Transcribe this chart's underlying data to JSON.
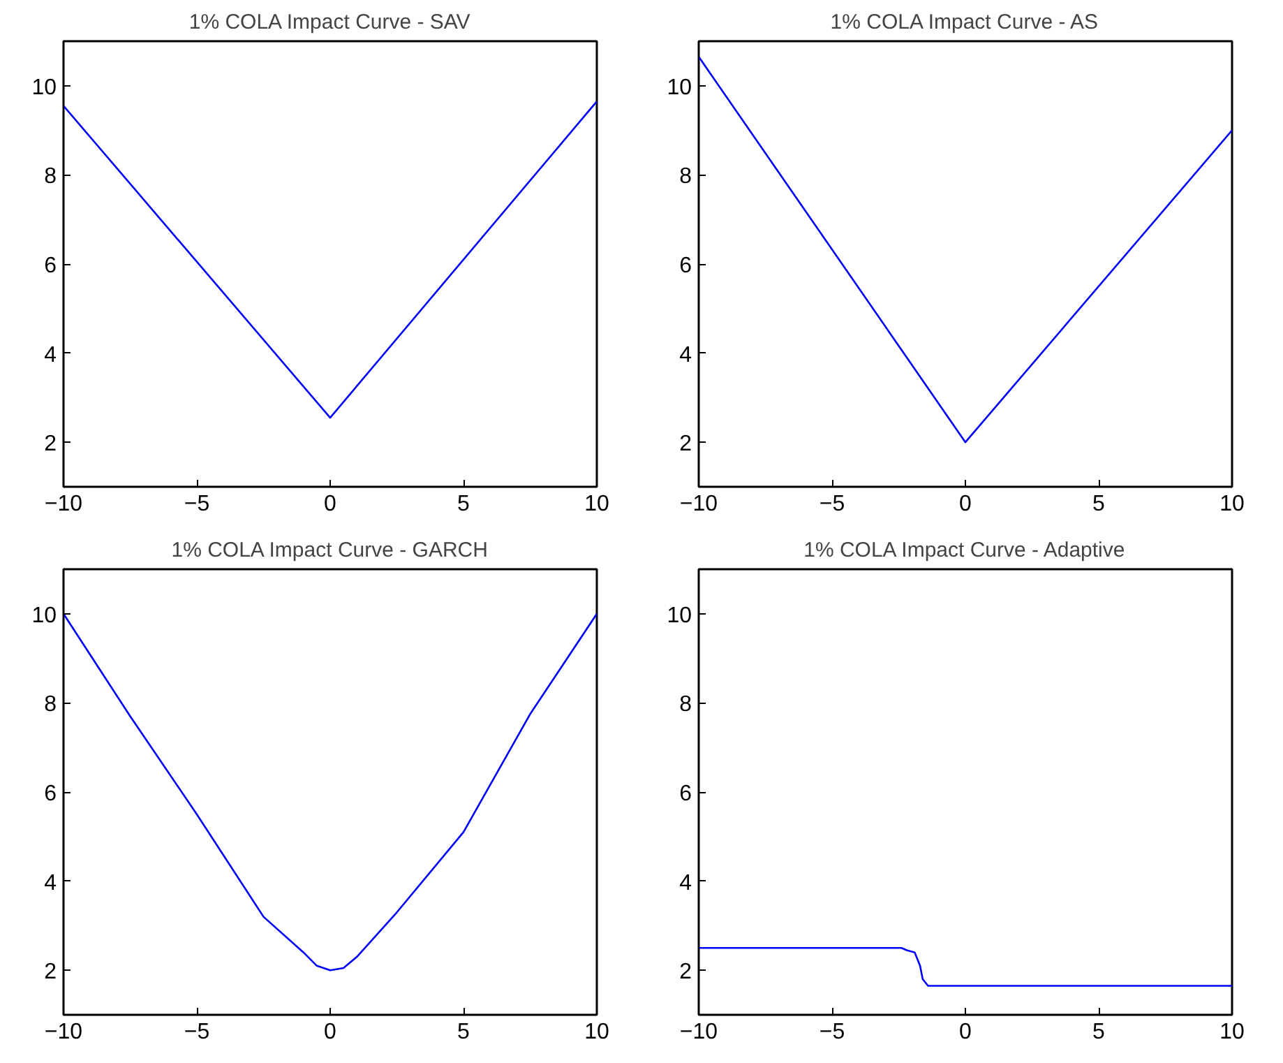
{
  "chart_data": [
    {
      "type": "line",
      "title": "1% COLA Impact Curve - SAV",
      "xlim": [
        -10,
        10
      ],
      "ylim": [
        1,
        11
      ],
      "xticks": [
        -10,
        -5,
        0,
        5,
        10
      ],
      "yticks": [
        2,
        4,
        6,
        8,
        10
      ],
      "grid": false,
      "series": [
        {
          "color": "#0000ff",
          "x": [
            -10,
            0,
            10
          ],
          "values": [
            9.55,
            2.55,
            9.65
          ]
        }
      ]
    },
    {
      "type": "line",
      "title": "1% COLA Impact Curve - AS",
      "xlim": [
        -10,
        10
      ],
      "ylim": [
        1,
        11
      ],
      "xticks": [
        -10,
        -5,
        0,
        5,
        10
      ],
      "yticks": [
        2,
        4,
        6,
        8,
        10
      ],
      "grid": false,
      "series": [
        {
          "color": "#0000ff",
          "x": [
            -10,
            0,
            10
          ],
          "values": [
            10.65,
            2.0,
            9.0
          ]
        }
      ]
    },
    {
      "type": "line",
      "title": "1% COLA Impact Curve - GARCH",
      "xlim": [
        -10,
        10
      ],
      "ylim": [
        1,
        11
      ],
      "xticks": [
        -10,
        -5,
        0,
        5,
        10
      ],
      "yticks": [
        2,
        4,
        6,
        8,
        10
      ],
      "grid": false,
      "series": [
        {
          "color": "#0000ff",
          "x": [
            -10,
            -7.5,
            -5,
            -2.5,
            -1,
            -0.5,
            0,
            0.5,
            1,
            2.5,
            5,
            7.5,
            10
          ],
          "values": [
            10,
            7.7,
            5.5,
            3.2,
            2.4,
            2.1,
            2.0,
            2.05,
            2.3,
            3.3,
            5.1,
            7.75,
            10
          ]
        }
      ]
    },
    {
      "type": "line",
      "title": "1% COLA Impact Curve - Adaptive",
      "xlim": [
        -10,
        10
      ],
      "ylim": [
        1,
        11
      ],
      "xticks": [
        -10,
        -5,
        0,
        5,
        10
      ],
      "yticks": [
        2,
        4,
        6,
        8,
        10
      ],
      "grid": false,
      "series": [
        {
          "color": "#0000ff",
          "x": [
            -10,
            -2.4,
            -2.2,
            -1.9,
            -1.7,
            -1.6,
            -1.4,
            10
          ],
          "values": [
            2.5,
            2.5,
            2.45,
            2.4,
            2.1,
            1.8,
            1.65,
            1.65
          ]
        }
      ]
    }
  ]
}
